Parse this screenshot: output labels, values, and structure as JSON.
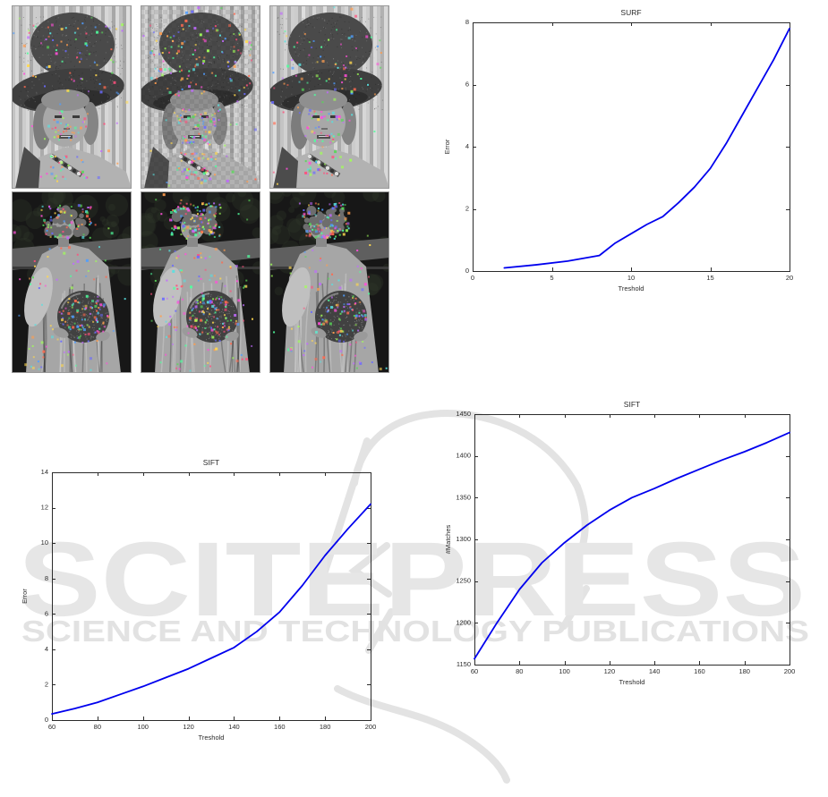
{
  "page": {
    "background": "#ffffff"
  },
  "watermark": {
    "line1": "SCITEPRESS",
    "line2": "SCIENCE AND TECHNOLOGY PUBLICATIONS",
    "big_color": "#e6e6e6",
    "small_color": "#e2e2e2",
    "logo_color": "#e3e3e3"
  },
  "photo_grid": {
    "rows": [
      {
        "name": "portrait-with-hat",
        "cells": [
          "portrait-1",
          "portrait-2",
          "portrait-3"
        ]
      },
      {
        "name": "statue-with-sphere",
        "cells": [
          "statue-1",
          "statue-2",
          "statue-3"
        ]
      }
    ],
    "feature_point_palette": [
      "#ff4fd8",
      "#58d858",
      "#ffd84f",
      "#4f9dff",
      "#ff6a4f",
      "#58e0e0",
      "#c06aff",
      "#a0ff58",
      "#ff9d4f",
      "#6a6aff",
      "#ff4f7c",
      "#4fff9d"
    ]
  },
  "chart_data": [
    {
      "id": "surf-error",
      "type": "line",
      "title": "SURF",
      "xlabel": "Treshold",
      "ylabel": "Error",
      "xlim": [
        0,
        20
      ],
      "ylim": [
        0,
        8
      ],
      "xticks": [
        0,
        5,
        10,
        15,
        20
      ],
      "yticks": [
        0,
        2,
        4,
        6,
        8
      ],
      "grid": false,
      "legend": null,
      "line_color": "#0000ee",
      "x": [
        2,
        4,
        6,
        8,
        9,
        10,
        11,
        12,
        13,
        14,
        15,
        16,
        17,
        18,
        19,
        20
      ],
      "y": [
        0.1,
        0.2,
        0.32,
        0.5,
        0.9,
        1.2,
        1.5,
        1.75,
        2.2,
        2.7,
        3.3,
        4.1,
        5.0,
        5.9,
        6.8,
        7.8
      ]
    },
    {
      "id": "sift-error",
      "type": "line",
      "title": "SIFT",
      "xlabel": "Treshold",
      "ylabel": "Error",
      "xlim": [
        60,
        200
      ],
      "ylim": [
        0,
        14
      ],
      "xticks": [
        60,
        80,
        100,
        120,
        140,
        160,
        180,
        200
      ],
      "yticks": [
        0,
        2,
        4,
        6,
        8,
        10,
        12,
        14
      ],
      "grid": false,
      "legend": null,
      "line_color": "#0000ee",
      "x": [
        60,
        70,
        80,
        90,
        100,
        110,
        120,
        130,
        140,
        150,
        160,
        170,
        180,
        190,
        200
      ],
      "y": [
        0.35,
        0.65,
        1.0,
        1.45,
        1.9,
        2.4,
        2.9,
        3.5,
        4.1,
        5.0,
        6.1,
        7.6,
        9.3,
        10.8,
        12.2
      ]
    },
    {
      "id": "sift-matches",
      "type": "line",
      "title": "SIFT",
      "xlabel": "Treshold",
      "ylabel": "#Matches",
      "xlim": [
        60,
        200
      ],
      "ylim": [
        1150,
        1450
      ],
      "xticks": [
        60,
        80,
        100,
        120,
        140,
        160,
        180,
        200
      ],
      "yticks": [
        1150,
        1200,
        1250,
        1300,
        1350,
        1400,
        1450
      ],
      "grid": false,
      "legend": null,
      "line_color": "#0000ee",
      "x": [
        60,
        70,
        80,
        90,
        100,
        110,
        120,
        130,
        140,
        150,
        160,
        170,
        180,
        190,
        200
      ],
      "y": [
        1157,
        1200,
        1240,
        1272,
        1296,
        1317,
        1335,
        1350,
        1361,
        1373,
        1384,
        1395,
        1405,
        1416,
        1428
      ]
    }
  ]
}
